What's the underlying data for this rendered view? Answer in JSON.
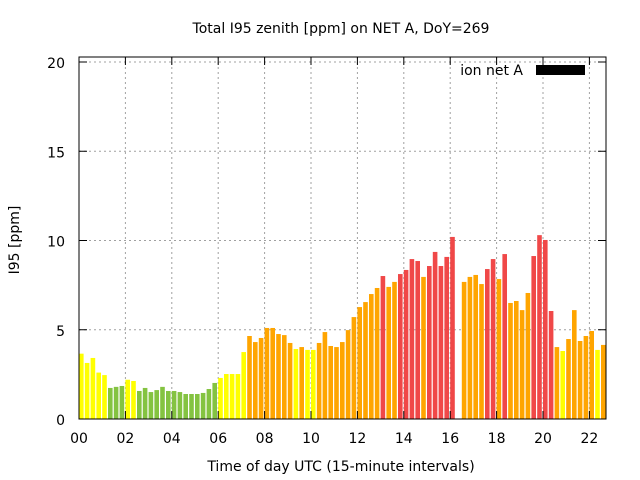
{
  "chart_data": {
    "type": "bar",
    "title": "Total I95 zenith [ppm] on NET A, DoY=269",
    "xlabel": "Time of day UTC (15-minute intervals)",
    "ylabel": "I95 [ppm]",
    "ylim": [
      0,
      20
    ],
    "yticks": [
      "0",
      "5",
      "10",
      "15",
      "20"
    ],
    "xticks": [
      "00",
      "02",
      "04",
      "06",
      "08",
      "10",
      "12",
      "14",
      "16",
      "18",
      "20",
      "22"
    ],
    "grid": true,
    "legend": {
      "label": "ion net A",
      "color": "#000000",
      "placement": "top-right"
    },
    "interval_minutes": 15,
    "palette": {
      "g": "#84c341",
      "y": "#ffff00",
      "o": "#ffa500",
      "r": "#f04848"
    },
    "values": [
      3.66,
      3.14,
      3.42,
      2.6,
      2.46,
      1.74,
      1.8,
      1.85,
      2.2,
      2.13,
      1.57,
      1.74,
      1.51,
      1.62,
      1.8,
      1.57,
      1.57,
      1.51,
      1.4,
      1.4,
      1.4,
      1.46,
      1.68,
      2.02,
      2.3,
      2.52,
      2.52,
      2.52,
      3.75,
      4.65,
      4.31,
      4.54,
      5.1,
      5.1,
      4.76,
      4.7,
      4.26,
      3.92,
      4.03,
      3.87,
      3.87,
      4.26,
      4.87,
      4.09,
      4.03,
      4.31,
      4.98,
      5.71,
      6.27,
      6.55,
      7.0,
      7.34,
      8.01,
      7.4,
      7.68,
      8.12,
      8.35,
      8.96,
      8.85,
      7.96,
      8.57,
      9.36,
      8.57,
      9.08,
      10.2,
      null,
      7.68,
      7.96,
      8.07,
      7.56,
      8.4,
      8.96,
      7.84,
      9.24,
      6.5,
      6.61,
      6.1,
      7.06,
      9.13,
      10.3,
      10.03,
      6.05,
      4.03,
      3.81,
      4.48,
      6.1,
      4.37,
      4.65,
      4.93,
      3.87,
      4.15,
      2.69
    ],
    "colors": [
      "y",
      "y",
      "y",
      "y",
      "y",
      "g",
      "g",
      "g",
      "y",
      "y",
      "g",
      "g",
      "g",
      "g",
      "g",
      "g",
      "g",
      "g",
      "g",
      "g",
      "g",
      "g",
      "g",
      "g",
      "y",
      "y",
      "y",
      "y",
      "y",
      "o",
      "o",
      "o",
      "o",
      "o",
      "o",
      "o",
      "o",
      "y",
      "o",
      "y",
      "y",
      "o",
      "o",
      "o",
      "o",
      "o",
      "o",
      "o",
      "o",
      "o",
      "o",
      "o",
      "r",
      "o",
      "o",
      "r",
      "r",
      "r",
      "r",
      "o",
      "r",
      "r",
      "r",
      "r",
      "r",
      null,
      "o",
      "o",
      "o",
      "o",
      "r",
      "r",
      "o",
      "r",
      "o",
      "o",
      "o",
      "o",
      "r",
      "r",
      "r",
      "r",
      "o",
      "y",
      "o",
      "o",
      "o",
      "o",
      "o",
      "y",
      "o",
      "y"
    ]
  }
}
